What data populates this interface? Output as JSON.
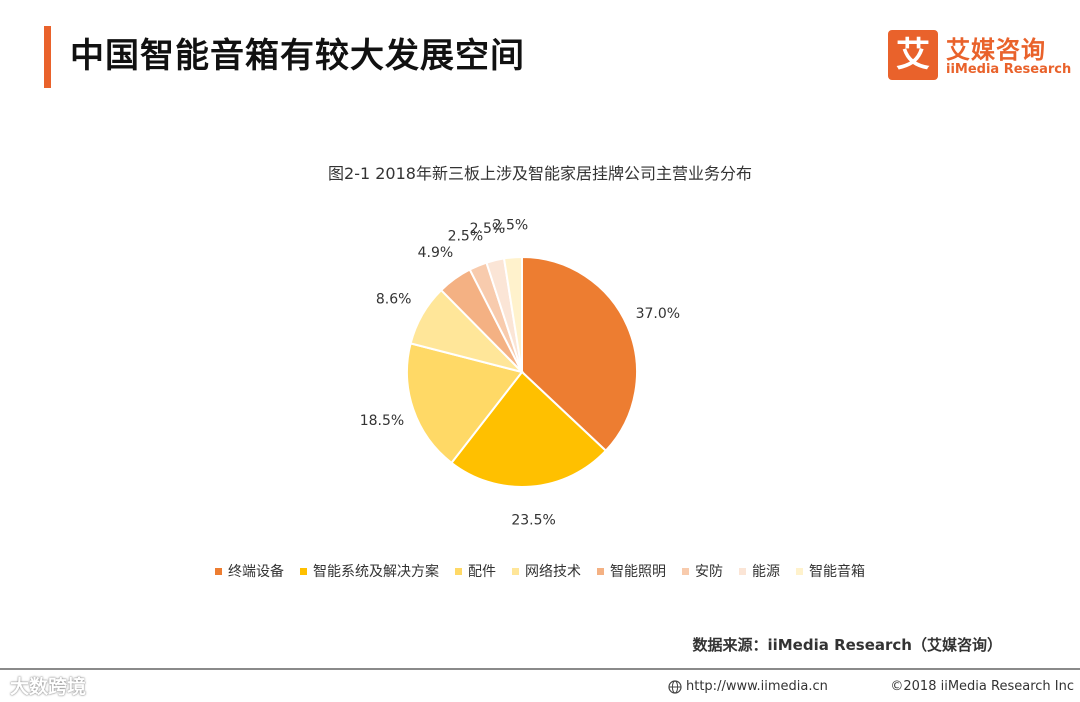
{
  "header": {
    "title": "中国智能音箱有较大发展空间",
    "accent_color": "#E9622B"
  },
  "logo": {
    "mark": "艾",
    "name_cn": "艾媒咨询",
    "name_en": "iiMedia Research"
  },
  "chart_data": {
    "type": "pie",
    "title": "图2-1 2018年新三板上涉及智能家居挂牌公司主营业务分布",
    "categories": [
      "终端设备",
      "智能系统及解决方案",
      "配件",
      "网络技术",
      "智能照明",
      "安防",
      "能源",
      "智能音箱"
    ],
    "values": [
      37.0,
      23.5,
      18.5,
      8.6,
      4.9,
      2.5,
      2.5,
      2.5
    ],
    "labels": [
      "37.0%",
      "23.5%",
      "18.5%",
      "8.6%",
      "4.9%",
      "2.5%",
      "2.5%",
      "2.5%"
    ],
    "colors": [
      "#ED7D31",
      "#FFC000",
      "#FFD966",
      "#FFE699",
      "#F4B183",
      "#F8CBAD",
      "#FBE5D6",
      "#FFF2CC"
    ],
    "legend_position": "bottom"
  },
  "source": "数据来源：iiMedia Research（艾媒咨询）",
  "footer": {
    "watermark": "大数跨境",
    "url": "http://www.iimedia.cn",
    "copyright": "©2018  iiMedia Research Inc"
  }
}
